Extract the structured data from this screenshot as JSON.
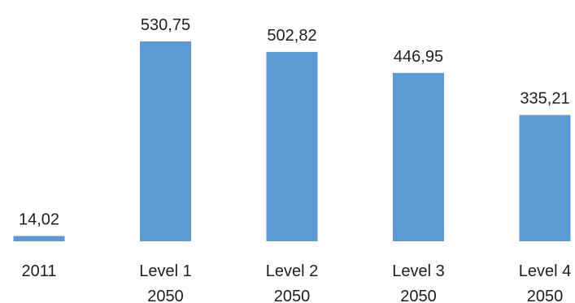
{
  "chart_data": {
    "type": "bar",
    "categories": [
      [
        "2011"
      ],
      [
        "Level 1",
        "2050"
      ],
      [
        "Level 2",
        "2050"
      ],
      [
        "Level 3",
        "2050"
      ],
      [
        "Level 4",
        "2050"
      ]
    ],
    "values": [
      14.02,
      530.75,
      502.82,
      446.95,
      335.21
    ],
    "value_labels": [
      "14,02",
      "530,75",
      "502,82",
      "446,95",
      "335,21"
    ],
    "title": "",
    "xlabel": "",
    "ylabel": "",
    "ylim": [
      0,
      530.75
    ],
    "grid": false,
    "legend": "none",
    "bar_color": "#5b9bd5"
  }
}
